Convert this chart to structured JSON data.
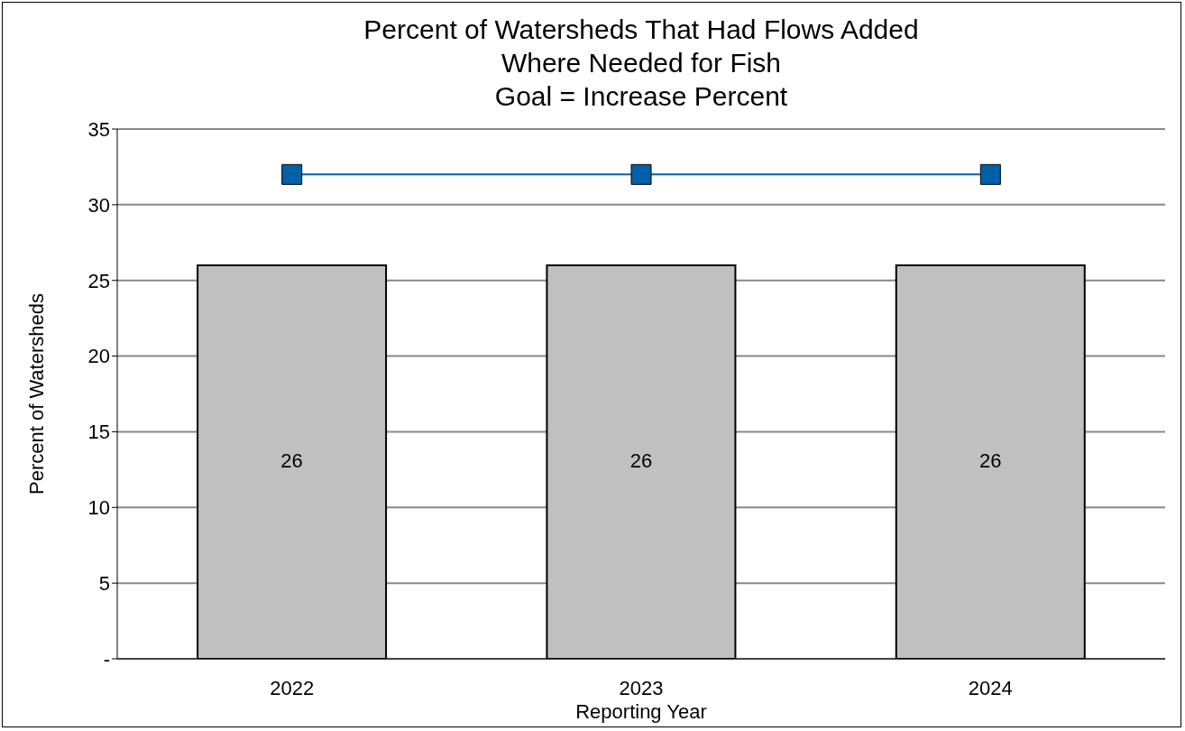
{
  "chart_data": {
    "type": "bar",
    "title": "Percent of Watersheds That Had Flows Added\nWhere Needed for Fish",
    "subtitle": "Goal = Increase Percent",
    "xlabel": "Reporting Year",
    "ylabel": "Percent of Watersheds",
    "categories": [
      "2022",
      "2023",
      "2024"
    ],
    "series": [
      {
        "color": "#c0c0c0",
        "values": [
          26,
          26,
          26
        ],
        "value_labels": [
          "26",
          "26",
          "26"
        ]
      },
      {
        "type": "line",
        "color": "#0060a8",
        "values": [
          32,
          32,
          32
        ]
      }
    ],
    "marker": "square",
    "ylim": [
      0,
      35
    ],
    "yticks": [
      {
        "value": 0,
        "label": "-"
      },
      5,
      10,
      15,
      20,
      25,
      30,
      35
    ],
    "grid": "y"
  }
}
